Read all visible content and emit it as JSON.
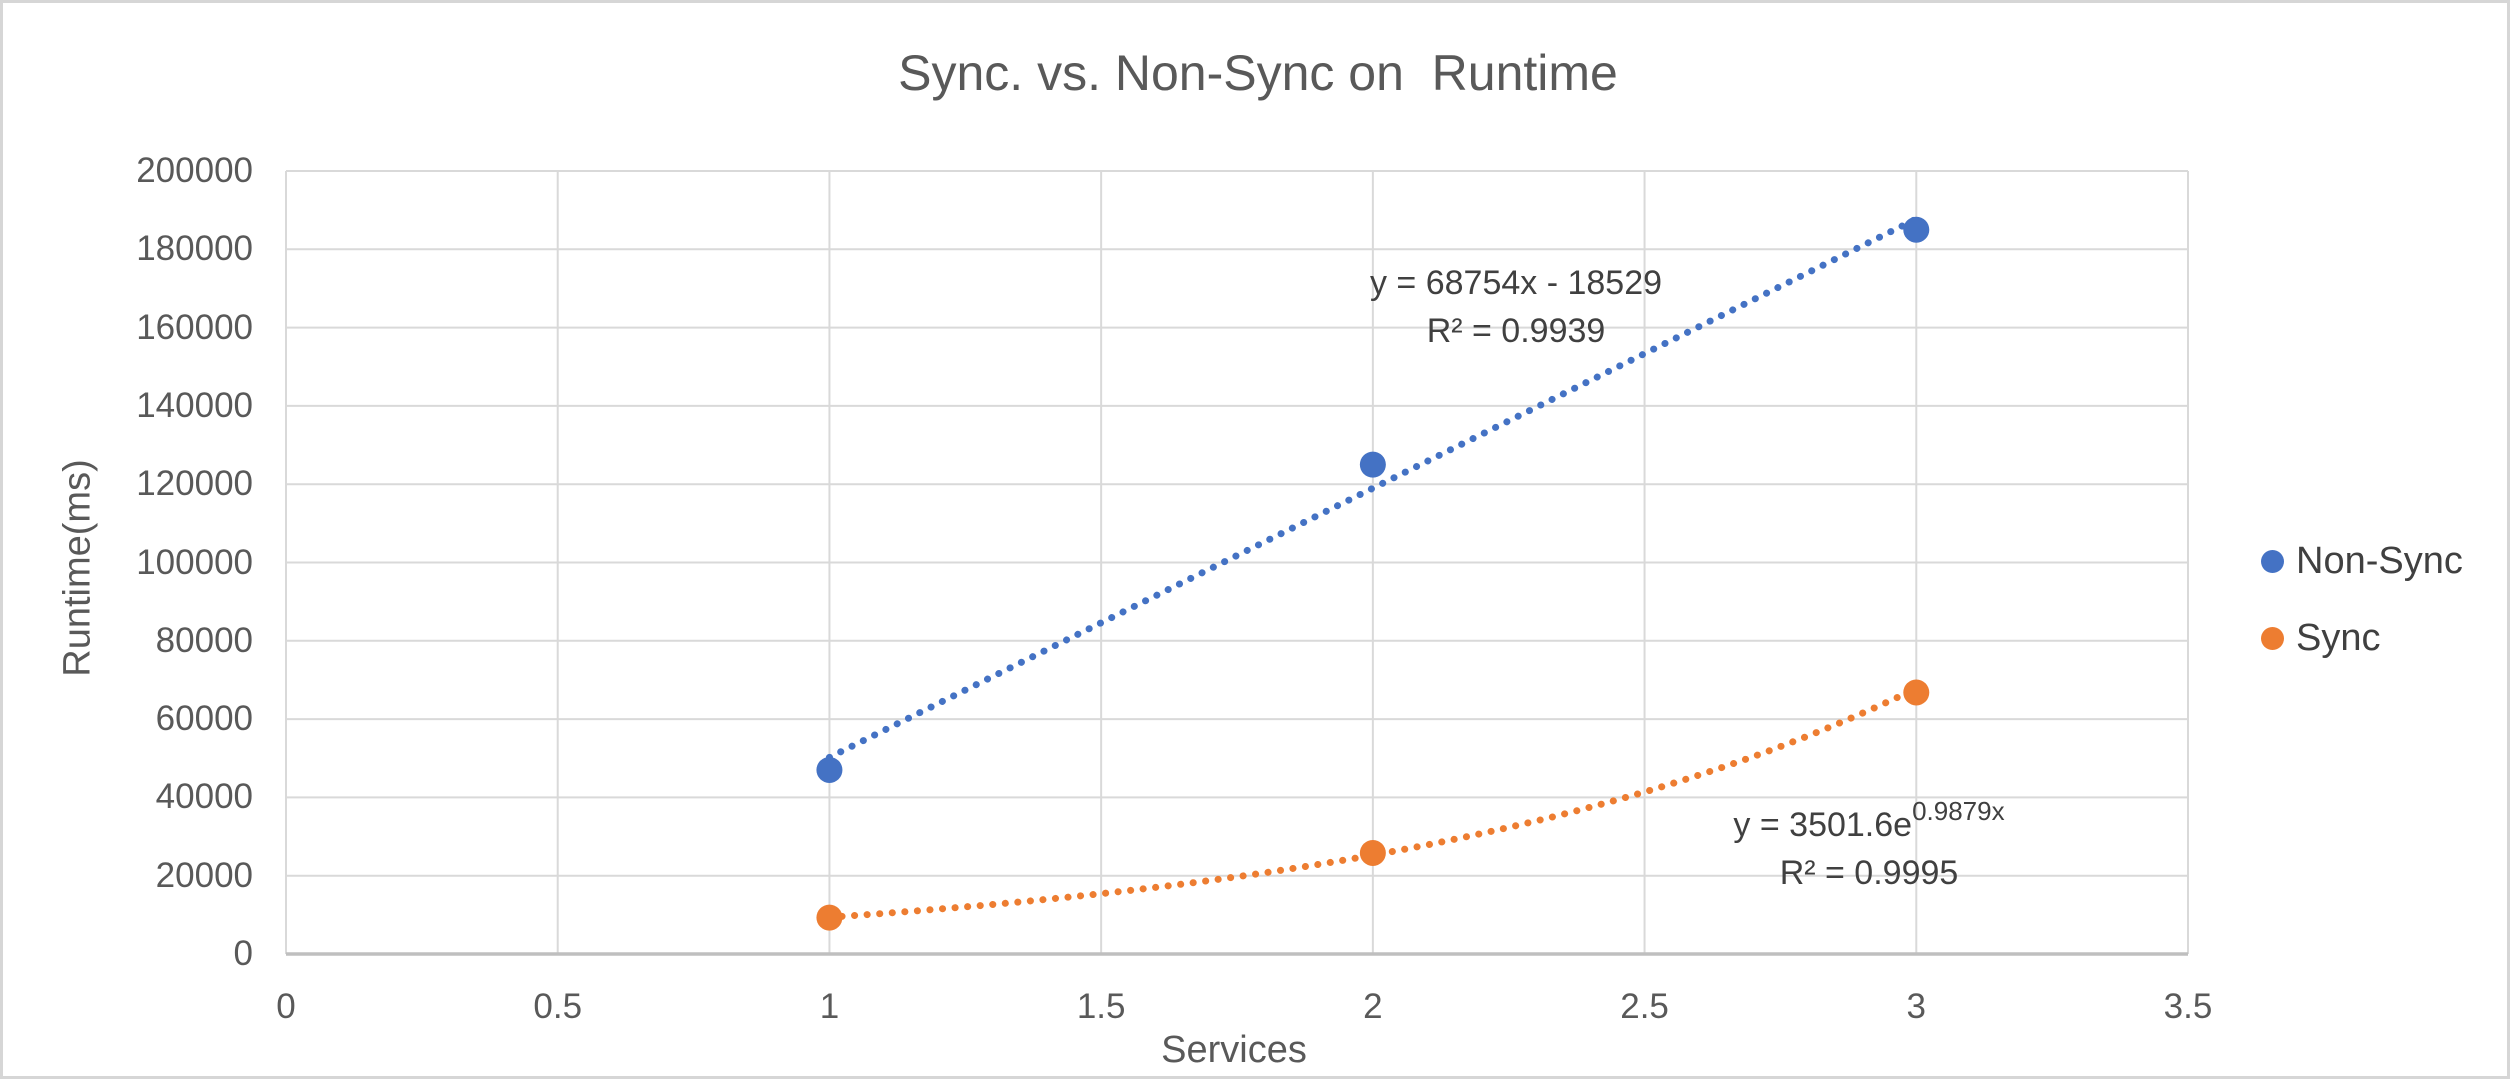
{
  "frame": {
    "border_color": "#d6d6d6",
    "background": "#ffffff"
  },
  "chart_data": {
    "type": "scatter",
    "title": "Sync. vs. Non-Sync on  Runtime",
    "xlabel": "Services",
    "ylabel": "Runtime(ms)",
    "xlim": [
      0,
      3.5
    ],
    "ylim": [
      0,
      200000
    ],
    "x_ticks": [
      0,
      0.5,
      1,
      1.5,
      2,
      2.5,
      3,
      3.5
    ],
    "y_ticks": [
      0,
      20000,
      40000,
      60000,
      80000,
      100000,
      120000,
      140000,
      160000,
      180000,
      200000
    ],
    "grid": true,
    "gridline_color": "#d9d9d9",
    "axis_line_color": "#bfbfbf",
    "tick_text_color": "#595959",
    "legend_position": "right-middle",
    "series": [
      {
        "name": "Non-Sync",
        "color": "#4472C4",
        "marker": "circle",
        "points": [
          [
            1,
            47000
          ],
          [
            2,
            125000
          ],
          [
            3,
            185000
          ]
        ],
        "trendline": {
          "kind": "linear",
          "style": "dotted",
          "slope": 68754,
          "intercept": -18529,
          "domain": [
            1,
            3
          ],
          "equation": "y = 68754x - 18529",
          "r_squared": "R² = 0.9939"
        }
      },
      {
        "name": "Sync",
        "color": "#ED7D31",
        "marker": "circle",
        "points": [
          [
            1,
            9300
          ],
          [
            2,
            25800
          ],
          [
            3,
            66800
          ]
        ],
        "trendline": {
          "kind": "exponential",
          "style": "dotted",
          "coefficient": 3501.6,
          "exponent": 0.9879,
          "domain": [
            1,
            3
          ],
          "equation_base": "y = 3501.6e",
          "equation_exponent": "0.9879x",
          "r_squared": "R² = 0.9995"
        }
      }
    ]
  },
  "legend": {
    "items": [
      {
        "label": "Non-Sync",
        "color": "#4472C4"
      },
      {
        "label": "Sync",
        "color": "#ED7D31"
      }
    ]
  }
}
